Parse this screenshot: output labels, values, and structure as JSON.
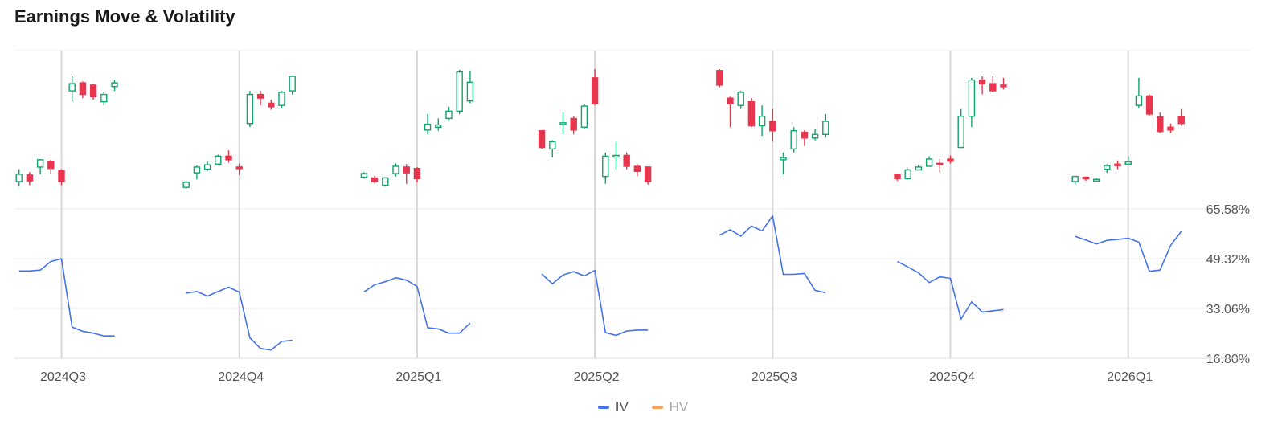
{
  "title": "Earnings Move & Volatility",
  "legend": {
    "iv_label": "IV",
    "hv_label": "HV",
    "iv_color": "#4472e8",
    "hv_color": "#f4a460"
  },
  "colors": {
    "up": "#0fa56b",
    "down": "#e8364f",
    "grid": "#ececec",
    "earnings_line": "#d8d8d8",
    "axis_text": "#555555"
  },
  "chart_data": {
    "type": "candlestick+line",
    "quarters": [
      "2024Q3",
      "2024Q4",
      "2025Q1",
      "2025Q2",
      "2025Q3",
      "2025Q4",
      "2026Q1"
    ],
    "volatility_axis": {
      "ticks": [
        "65.58%",
        "49.32%",
        "33.06%",
        "16.80%"
      ],
      "tick_values": [
        65.58,
        49.32,
        33.06,
        16.8
      ],
      "range": [
        16.8,
        65.58
      ]
    },
    "price_note": "Price shown as percent move relative to pre-earnings close (normalized, unlabeled).",
    "candles": [
      [
        [
          -1.5,
          -0.5,
          -2.2,
          0.2
        ],
        [
          -0.6,
          -1.4,
          -2.0,
          -0.2
        ],
        [
          0.5,
          1.5,
          -0.5,
          1.6
        ],
        [
          1.3,
          0.3,
          -0.4,
          1.5
        ],
        [
          0.0,
          -1.5,
          -2.0,
          0.2
        ],
        [
          11.0,
          12.0,
          9.5,
          13.0
        ],
        [
          12.1,
          10.5,
          10.0,
          12.3
        ],
        [
          11.8,
          10.2,
          9.8,
          12.0
        ],
        [
          9.5,
          10.5,
          9.0,
          10.8
        ],
        [
          11.6,
          12.1,
          11.0,
          12.5
        ]
      ],
      [
        [
          -2.3,
          -1.6,
          -2.5,
          -1.4
        ],
        [
          -0.3,
          0.5,
          -1.2,
          0.7
        ],
        [
          0.2,
          0.8,
          0.0,
          1.3
        ],
        [
          0.9,
          2.0,
          0.7,
          2.2
        ],
        [
          2.0,
          1.5,
          1.1,
          2.8
        ],
        [
          0.5,
          0.4,
          -0.6,
          1.0
        ],
        [
          6.5,
          10.5,
          6.0,
          11.0
        ],
        [
          10.5,
          10.0,
          9.0,
          11.0
        ],
        [
          9.3,
          8.8,
          8.4,
          9.8
        ],
        [
          9.0,
          10.8,
          8.6,
          11.0
        ],
        [
          11.0,
          13.0,
          10.5,
          13.1
        ]
      ],
      [
        [
          -0.9,
          -0.4,
          -1.1,
          -0.2
        ],
        [
          -1.0,
          -1.5,
          -1.8,
          -0.7
        ],
        [
          -2.0,
          -1.0,
          -2.2,
          -0.9
        ],
        [
          -0.4,
          0.6,
          -0.8,
          1.0
        ],
        [
          0.5,
          -0.3,
          -1.8,
          0.9
        ],
        [
          0.3,
          -1.1,
          -1.6,
          0.5
        ],
        [
          5.6,
          6.4,
          5.0,
          7.8
        ],
        [
          6.0,
          6.3,
          5.5,
          7.2
        ],
        [
          7.2,
          8.2,
          7.0,
          8.8
        ],
        [
          8.2,
          13.6,
          7.8,
          13.9
        ],
        [
          9.6,
          12.2,
          9.3,
          13.8
        ]
      ],
      [
        [
          5.5,
          3.2,
          3.0,
          5.6
        ],
        [
          3.0,
          4.0,
          1.8,
          4.2
        ],
        [
          6.5,
          6.6,
          5.0,
          8.0
        ],
        [
          7.2,
          5.6,
          5.0,
          7.5
        ],
        [
          6.0,
          8.9,
          5.8,
          9.2
        ],
        [
          12.8,
          9.2,
          9.0,
          14.0
        ],
        [
          -0.8,
          2.0,
          -1.8,
          2.5
        ],
        [
          2.0,
          2.1,
          0.2,
          4.0
        ],
        [
          2.1,
          0.6,
          0.2,
          2.5
        ],
        [
          0.6,
          -0.1,
          -0.8,
          0.9
        ],
        [
          0.5,
          -1.5,
          -1.9,
          0.6
        ]
      ],
      [
        [
          13.8,
          11.8,
          11.5,
          14.0
        ],
        [
          10.0,
          9.2,
          6.0,
          10.2
        ],
        [
          9.0,
          10.8,
          8.5,
          11.0
        ],
        [
          9.5,
          6.2,
          6.0,
          10.0
        ],
        [
          6.2,
          7.5,
          4.8,
          9.0
        ],
        [
          6.8,
          5.5,
          4.0,
          8.5
        ],
        [
          1.5,
          1.8,
          -0.5,
          2.5
        ],
        [
          3.0,
          5.5,
          2.5,
          6.0
        ],
        [
          5.3,
          4.5,
          3.4,
          5.6
        ],
        [
          4.5,
          5.0,
          4.2,
          5.8
        ],
        [
          5.0,
          6.8,
          4.6,
          7.8
        ]
      ],
      [
        [
          -0.5,
          -1.1,
          -1.4,
          -0.4
        ],
        [
          -1.1,
          0.1,
          -1.2,
          0.3
        ],
        [
          0.1,
          0.5,
          0.1,
          0.8
        ],
        [
          0.6,
          1.6,
          0.6,
          2.0
        ],
        [
          1.0,
          0.8,
          -0.2,
          1.6
        ],
        [
          1.6,
          1.3,
          1.0,
          2.1
        ],
        [
          3.2,
          7.5,
          3.1,
          8.5
        ],
        [
          7.5,
          12.5,
          6.0,
          12.8
        ],
        [
          12.5,
          12.0,
          10.5,
          13.0
        ],
        [
          12.0,
          11.0,
          10.8,
          13.0
        ],
        [
          11.8,
          11.6,
          11.2,
          12.8
        ]
      ],
      [
        [
          -1.5,
          -0.8,
          -1.9,
          -0.7
        ],
        [
          -0.9,
          -1.1,
          -1.4,
          -0.8
        ],
        [
          -1.2,
          -1.2,
          -1.5,
          -1.0
        ],
        [
          0.2,
          0.7,
          -0.3,
          0.9
        ],
        [
          0.9,
          0.7,
          0.2,
          1.4
        ],
        [
          0.9,
          1.2,
          0.8,
          2.0
        ],
        [
          9.0,
          10.3,
          8.6,
          12.8
        ],
        [
          10.3,
          7.8,
          7.6,
          10.5
        ],
        [
          7.4,
          5.4,
          5.2,
          8.0
        ],
        [
          6.0,
          5.6,
          5.2,
          6.5
        ],
        [
          7.5,
          6.5,
          6.2,
          8.5
        ]
      ]
    ],
    "earnings_candle_index": [
      4,
      5,
      5,
      5,
      5,
      5,
      5
    ],
    "iv": [
      [
        45.3,
        45.3,
        45.6,
        48.4,
        49.3,
        27.0,
        25.6,
        25.0,
        24.1,
        24.1
      ],
      [
        38.1,
        38.6,
        37.1,
        38.6,
        40.0,
        38.4,
        23.5,
        20.0,
        19.5,
        22.3,
        22.7
      ],
      [
        38.5,
        40.8,
        41.8,
        43.1,
        42.3,
        40.3,
        26.8,
        26.4,
        25.0,
        25.0,
        28.3
      ],
      [
        44.3,
        41.1,
        44.0,
        45.1,
        43.7,
        45.5,
        25.2,
        24.3,
        25.7,
        26.0,
        26.0
      ],
      [
        57.0,
        58.8,
        56.7,
        60.0,
        58.4,
        63.3,
        44.2,
        44.2,
        44.5,
        39.0,
        38.2
      ],
      [
        48.4,
        46.6,
        44.7,
        41.5,
        43.4,
        42.9,
        29.6,
        35.2,
        31.9,
        32.3,
        32.7
      ],
      [
        56.6,
        55.4,
        54.1,
        55.3,
        55.6,
        56.0,
        54.7,
        45.2,
        45.6,
        53.7,
        58.2
      ]
    ],
    "hv": []
  }
}
